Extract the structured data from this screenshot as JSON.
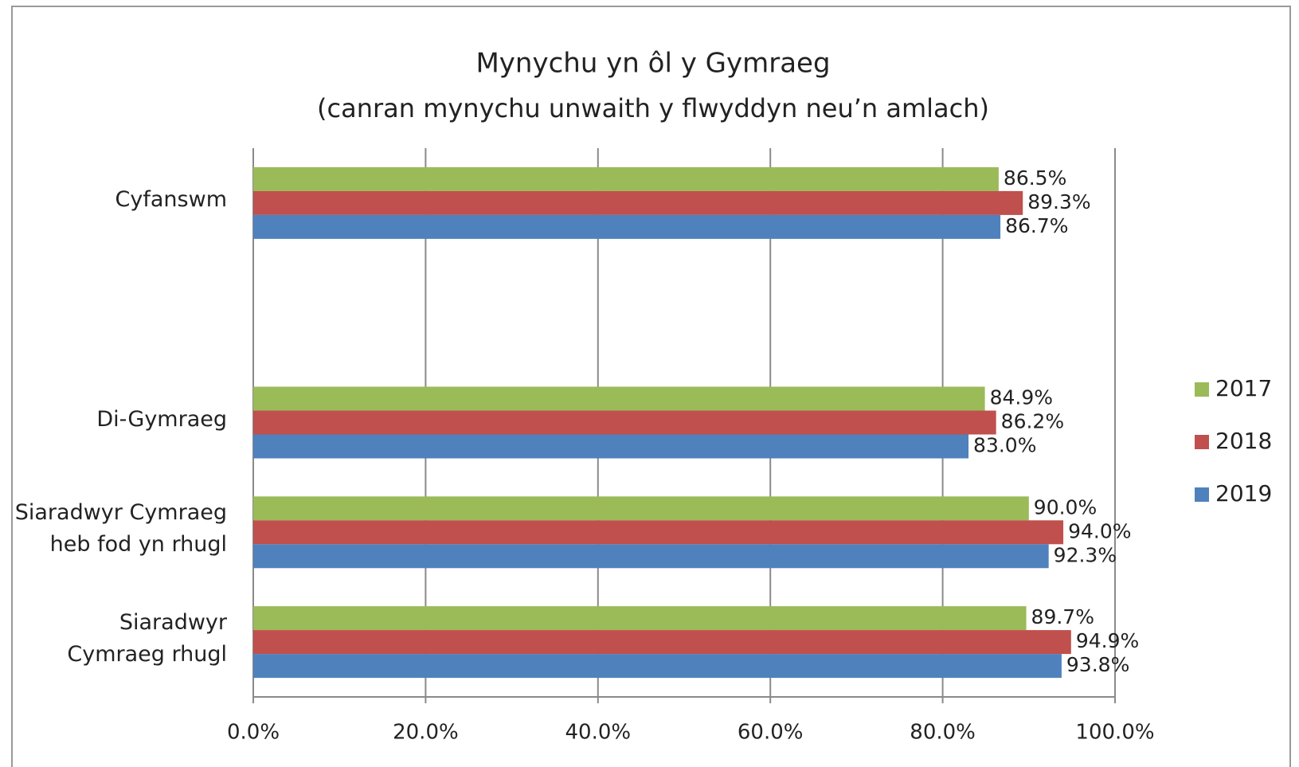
{
  "chart_data": {
    "type": "bar",
    "orientation": "horizontal",
    "title": "Mynychu yn ôl y Gymraeg",
    "subtitle": "(canran mynychu unwaith y flwyddyn neu’n amlach)",
    "categories": [
      "Cyfanswm",
      null,
      "Di-Gymraeg",
      "Siaradwyr Cymraeg\nheb fod yn rhugl",
      "Siaradwyr\nCymraeg rhugl"
    ],
    "series": [
      {
        "name": "2017",
        "color": "#9bbb59",
        "values": [
          86.5,
          null,
          84.9,
          90.0,
          89.7
        ],
        "value_labels": [
          "86.5%",
          null,
          "84.9%",
          "90.0%",
          "89.7%"
        ]
      },
      {
        "name": "2018",
        "color": "#c0504d",
        "values": [
          89.3,
          null,
          86.2,
          94.0,
          94.9
        ],
        "value_labels": [
          "89.3%",
          null,
          "86.2%",
          "94.0%",
          "94.9%"
        ]
      },
      {
        "name": "2019",
        "color": "#4f81bd",
        "values": [
          86.7,
          null,
          83.0,
          92.3,
          93.8
        ],
        "value_labels": [
          "86.7%",
          null,
          "83.0%",
          "92.3%",
          "93.8%"
        ]
      }
    ],
    "xlim": [
      0,
      100
    ],
    "xticks": [
      {
        "value": 0,
        "label": "0.0%"
      },
      {
        "value": 20,
        "label": "20.0%"
      },
      {
        "value": 40,
        "label": "40.0%"
      },
      {
        "value": 60,
        "label": "60.0%"
      },
      {
        "value": 80,
        "label": "80.0%"
      },
      {
        "value": 100,
        "label": "100.0%"
      }
    ],
    "grid": true,
    "legend": "right"
  }
}
